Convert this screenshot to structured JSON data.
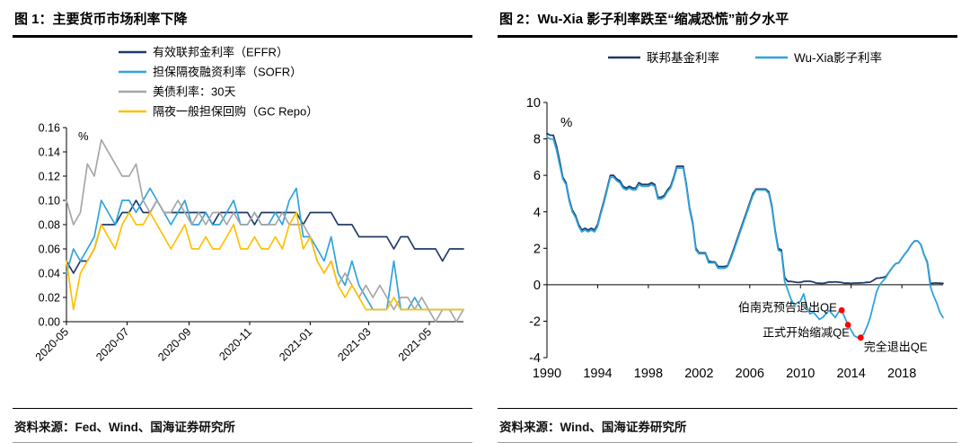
{
  "figures": [
    {
      "title": "图 1：主要货币市场利率下降",
      "source": "资料来源：Fed、Wind、国海证券研究所"
    },
    {
      "title": "图 2：Wu-Xia 影子利率跌至“缩减恐慌”前夕水平",
      "source": "资料来源：Wind、国海证券研究所"
    }
  ],
  "chart_data": [
    {
      "type": "line",
      "title": "主要货币市场利率下降",
      "unit_label": "%",
      "ylim": [
        0,
        0.16
      ],
      "yticks": [
        0.0,
        0.02,
        0.04,
        0.06,
        0.08,
        0.1,
        0.12,
        0.14,
        0.16
      ],
      "ytick_format": "2dp",
      "x_axis_at": 0,
      "grid": false,
      "legend_position": "top",
      "xticks": [
        {
          "pos": 0,
          "label": "2020-05"
        },
        {
          "pos": 8.7,
          "label": "2020-07"
        },
        {
          "pos": 17.6,
          "label": "2020-09"
        },
        {
          "pos": 26.3,
          "label": "2020-11"
        },
        {
          "pos": 35.0,
          "label": "2021-01"
        },
        {
          "pos": 43.4,
          "label": "2021-03"
        },
        {
          "pos": 52.1,
          "label": "2021-05"
        }
      ],
      "series": [
        {
          "name": "有效联邦金利率（EFFR）",
          "color": "#1f3a67",
          "values": [
            0.05,
            0.04,
            0.05,
            0.05,
            0.06,
            0.08,
            0.08,
            0.08,
            0.09,
            0.09,
            0.1,
            0.09,
            0.09,
            0.1,
            0.09,
            0.09,
            0.09,
            0.09,
            0.09,
            0.09,
            0.09,
            0.08,
            0.09,
            0.09,
            0.09,
            0.09,
            0.09,
            0.08,
            0.09,
            0.09,
            0.09,
            0.09,
            0.09,
            0.09,
            0.08,
            0.09,
            0.09,
            0.09,
            0.09,
            0.08,
            0.08,
            0.08,
            0.07,
            0.07,
            0.07,
            0.07,
            0.07,
            0.06,
            0.07,
            0.07,
            0.06,
            0.06,
            0.06,
            0.06,
            0.05,
            0.06,
            0.06,
            0.06
          ]
        },
        {
          "name": "担保隔夜融资利率（SOFR）",
          "color": "#2fa3dc",
          "values": [
            0.04,
            0.06,
            0.05,
            0.06,
            0.07,
            0.1,
            0.09,
            0.08,
            0.1,
            0.1,
            0.09,
            0.1,
            0.11,
            0.1,
            0.09,
            0.08,
            0.09,
            0.1,
            0.08,
            0.08,
            0.09,
            0.08,
            0.08,
            0.09,
            0.1,
            0.08,
            0.08,
            0.09,
            0.08,
            0.08,
            0.09,
            0.08,
            0.1,
            0.11,
            0.07,
            0.07,
            0.06,
            0.05,
            0.07,
            0.04,
            0.03,
            0.05,
            0.03,
            0.02,
            0.01,
            0.01,
            0.01,
            0.05,
            0.01,
            0.01,
            0.02,
            0.01,
            0.01,
            0.01,
            0.01,
            0.01,
            0.01,
            0.01
          ]
        },
        {
          "name": "美债利率：30天",
          "color": "#a6a6a6",
          "values": [
            0.1,
            0.08,
            0.09,
            0.13,
            0.12,
            0.15,
            0.14,
            0.13,
            0.12,
            0.12,
            0.13,
            0.1,
            0.09,
            0.1,
            0.09,
            0.09,
            0.1,
            0.09,
            0.08,
            0.09,
            0.08,
            0.09,
            0.09,
            0.08,
            0.09,
            0.08,
            0.08,
            0.09,
            0.08,
            0.08,
            0.08,
            0.09,
            0.08,
            0.08,
            0.08,
            0.07,
            0.05,
            0.04,
            0.05,
            0.03,
            0.04,
            0.03,
            0.02,
            0.03,
            0.02,
            0.03,
            0.02,
            0.01,
            0.02,
            0.02,
            0.01,
            0.02,
            0.01,
            0.0,
            0.01,
            0.01,
            0.0,
            0.01
          ]
        },
        {
          "name": "隔夜一般担保回购（GC Repo）",
          "color": "#ffc000",
          "values": [
            0.05,
            0.01,
            0.04,
            0.05,
            0.06,
            0.08,
            0.07,
            0.06,
            0.08,
            0.09,
            0.08,
            0.08,
            0.09,
            0.08,
            0.07,
            0.06,
            0.07,
            0.08,
            0.06,
            0.06,
            0.07,
            0.06,
            0.06,
            0.07,
            0.08,
            0.06,
            0.06,
            0.07,
            0.06,
            0.06,
            0.07,
            0.06,
            0.08,
            0.09,
            0.06,
            0.07,
            0.05,
            0.04,
            0.05,
            0.03,
            0.02,
            0.03,
            0.02,
            0.01,
            0.01,
            0.01,
            0.01,
            0.02,
            0.01,
            0.01,
            0.01,
            0.01,
            0.01,
            0.01,
            0.01,
            0.01,
            0.01,
            0.01
          ]
        }
      ]
    },
    {
      "type": "line",
      "title": "Wu-Xia 影子利率跌至“缩减恐慌”前夕水平",
      "unit_label": "%",
      "ylim": [
        -4,
        10
      ],
      "yticks": [
        -4,
        -2,
        0,
        2,
        4,
        6,
        8,
        10
      ],
      "ytick_format": "int",
      "x_axis_at": 0,
      "grid": false,
      "legend_position": "top",
      "xticks": [
        {
          "pos": 0,
          "label": "1990"
        },
        {
          "pos": 16,
          "label": "1994"
        },
        {
          "pos": 32,
          "label": "1998"
        },
        {
          "pos": 48,
          "label": "2002"
        },
        {
          "pos": 64,
          "label": "2006"
        },
        {
          "pos": 80,
          "label": "2010"
        },
        {
          "pos": 96,
          "label": "2014"
        },
        {
          "pos": 112,
          "label": "2018"
        }
      ],
      "series": [
        {
          "name": "联邦基金利率",
          "color": "#1f3a67",
          "values": [
            8.3,
            8.2,
            8.2,
            7.6,
            6.8,
            5.9,
            5.6,
            4.7,
            4.1,
            3.8,
            3.3,
            3.0,
            3.1,
            3.0,
            3.1,
            3.0,
            3.3,
            4.0,
            4.6,
            5.3,
            6.0,
            6.0,
            5.8,
            5.7,
            5.4,
            5.3,
            5.4,
            5.3,
            5.3,
            5.6,
            5.5,
            5.5,
            5.5,
            5.6,
            5.5,
            4.8,
            4.8,
            4.9,
            5.2,
            5.4,
            5.9,
            6.5,
            6.5,
            6.5,
            5.5,
            4.2,
            3.4,
            2.0,
            1.75,
            1.75,
            1.75,
            1.3,
            1.25,
            1.25,
            1.0,
            1.0,
            1.0,
            1.05,
            1.5,
            2.0,
            2.5,
            3.0,
            3.5,
            4.0,
            4.5,
            5.0,
            5.25,
            5.25,
            5.25,
            5.25,
            5.1,
            4.3,
            3.0,
            2.0,
            1.9,
            0.4,
            0.18,
            0.18,
            0.15,
            0.12,
            0.13,
            0.18,
            0.19,
            0.19,
            0.15,
            0.09,
            0.08,
            0.07,
            0.1,
            0.15,
            0.14,
            0.16,
            0.14,
            0.12,
            0.08,
            0.09,
            0.07,
            0.09,
            0.09,
            0.1,
            0.11,
            0.13,
            0.14,
            0.24,
            0.36,
            0.37,
            0.4,
            0.45,
            0.7,
            0.95,
            1.15,
            1.2,
            1.45,
            1.7,
            1.92,
            2.2,
            2.4,
            2.4,
            2.2,
            1.65,
            1.25,
            0.06,
            0.09,
            0.09,
            0.08,
            0.07
          ]
        },
        {
          "name": "Wu-Xia影子利率",
          "color": "#2fa3dc",
          "values": [
            8.1,
            8.0,
            8.0,
            7.4,
            6.6,
            5.8,
            5.5,
            4.6,
            4.0,
            3.7,
            3.2,
            2.9,
            3.0,
            2.9,
            3.0,
            2.9,
            3.2,
            3.9,
            4.5,
            5.2,
            5.9,
            5.9,
            5.7,
            5.6,
            5.3,
            5.2,
            5.3,
            5.2,
            5.2,
            5.5,
            5.4,
            5.4,
            5.4,
            5.5,
            5.4,
            4.7,
            4.7,
            4.8,
            5.1,
            5.3,
            5.8,
            6.4,
            6.4,
            6.4,
            5.4,
            4.1,
            3.3,
            1.9,
            1.7,
            1.7,
            1.7,
            1.2,
            1.2,
            1.2,
            0.9,
            0.9,
            0.9,
            1.0,
            1.4,
            1.9,
            2.4,
            2.9,
            3.4,
            3.9,
            4.4,
            4.9,
            5.2,
            5.2,
            5.2,
            5.2,
            5.0,
            4.2,
            2.9,
            1.9,
            1.8,
            0.2,
            -0.3,
            -0.8,
            -1.1,
            -1.0,
            -0.9,
            -0.5,
            -1.2,
            -1.6,
            -1.5,
            -1.7,
            -1.9,
            -1.8,
            -1.6,
            -1.4,
            -1.6,
            -1.8,
            -1.5,
            -1.4,
            -1.8,
            -2.2,
            -2.5,
            -2.8,
            -2.9,
            -2.9,
            -2.7,
            -2.3,
            -1.8,
            -1.1,
            -0.4,
            0.0,
            0.2,
            0.4,
            0.7,
            0.95,
            1.15,
            1.2,
            1.45,
            1.7,
            1.92,
            2.2,
            2.4,
            2.4,
            2.2,
            1.65,
            1.2,
            -0.1,
            -0.6,
            -1.0,
            -1.5,
            -1.8
          ]
        }
      ],
      "annotations": {
        "color": "#ff0000",
        "points": [
          {
            "x": 93,
            "y": -1.4
          },
          {
            "x": 95,
            "y": -2.2
          },
          {
            "x": 99,
            "y": -2.9
          }
        ],
        "labels": [
          {
            "text": "伯南克预告退出QE",
            "x": 91.5,
            "y": -1.45,
            "anchor": "end"
          },
          {
            "text": "正式开始缩减QE",
            "x": 95.5,
            "y": -2.85,
            "anchor": "end"
          },
          {
            "text": "完全退出QE",
            "x": 100,
            "y": -3.62,
            "anchor": "start"
          }
        ]
      }
    }
  ]
}
